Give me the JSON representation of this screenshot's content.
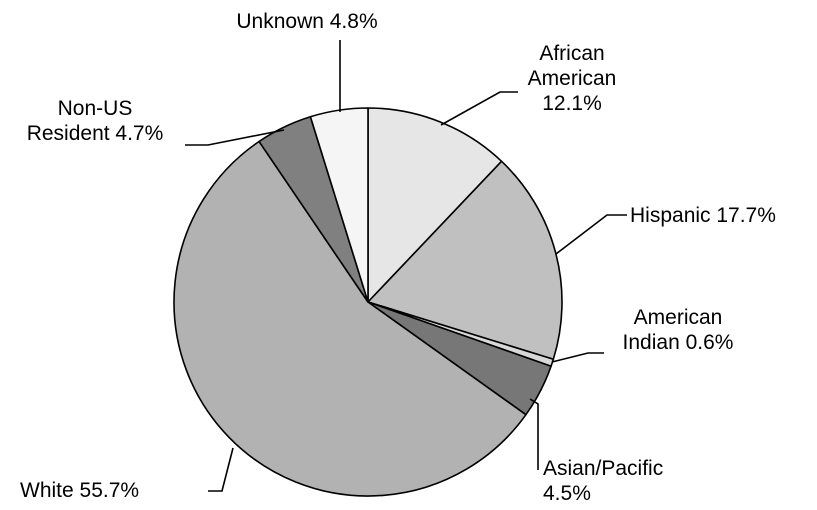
{
  "chart_data": {
    "type": "pie",
    "title": "",
    "start_angle_deg": 0,
    "direction": "clockwise",
    "slices": [
      {
        "label_lines": [
          "African",
          "American",
          "12.1%"
        ],
        "name": "African American",
        "value": 12.1,
        "color": "#e6e6e6"
      },
      {
        "label_lines": [
          "Hispanic 17.7%"
        ],
        "name": "Hispanic",
        "value": 17.7,
        "color": "#c0c0c0"
      },
      {
        "label_lines": [
          "American",
          "Indian 0.6%"
        ],
        "name": "American Indian",
        "value": 0.6,
        "color": "#d8d8d8"
      },
      {
        "label_lines": [
          "Asian/Pacific",
          "4.5%"
        ],
        "name": "Asian/Pacific",
        "value": 4.5,
        "color": "#777777"
      },
      {
        "label_lines": [
          "White 55.7%"
        ],
        "name": "White",
        "value": 55.7,
        "color": "#b2b2b2"
      },
      {
        "label_lines": [
          "Non-US",
          "Resident 4.7%"
        ],
        "name": "Non-US Resident",
        "value": 4.7,
        "color": "#808080"
      },
      {
        "label_lines": [
          "Unknown 4.8%"
        ],
        "name": "Unknown",
        "value": 4.8,
        "color": "#f5f5f5"
      }
    ]
  }
}
